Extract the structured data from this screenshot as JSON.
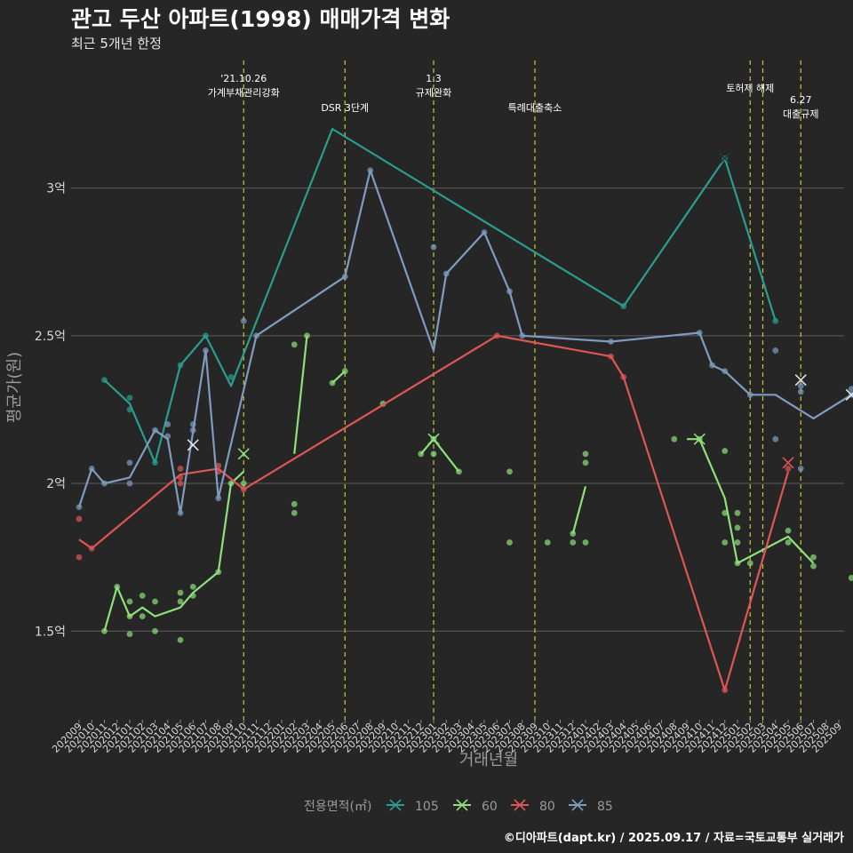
{
  "title": "관고 두산 아파트(1998) 매매가격 변화",
  "subtitle": "최근 5개년 한정",
  "caption": "©디아파트(dapt.kr) / 2025.09.17 / 자료=국토교통부 실거래가",
  "chart_data": {
    "type": "line",
    "xlabel": "거래년월",
    "ylabel": "평균가(원)",
    "ylim": [
      1.2,
      3.45
    ],
    "yticks": [
      {
        "v": 1.5,
        "label": "1.5억"
      },
      {
        "v": 2.0,
        "label": "2억"
      },
      {
        "v": 2.5,
        "label": "2.5억"
      },
      {
        "v": 3.0,
        "label": "3억"
      }
    ],
    "categories": [
      "202009",
      "202010",
      "202011",
      "202012",
      "202101",
      "202102",
      "202103",
      "202104",
      "202105",
      "202106",
      "202107",
      "202108",
      "202109",
      "202110",
      "202111",
      "202112",
      "202201",
      "202202",
      "202203",
      "202204",
      "202205",
      "202206",
      "202207",
      "202208",
      "202209",
      "202210",
      "202211",
      "202212",
      "202301",
      "202302",
      "202303",
      "202304",
      "202305",
      "202306",
      "202307",
      "202308",
      "202309",
      "202310",
      "202311",
      "202312",
      "202401",
      "202402",
      "202403",
      "202404",
      "202405",
      "202406",
      "202407",
      "202408",
      "202409",
      "202410",
      "202411",
      "202412",
      "202501",
      "202502",
      "202503",
      "202504",
      "202505",
      "202506",
      "202507",
      "202508",
      "202509"
    ],
    "legend_title": "전용면적(㎡)",
    "series": [
      {
        "name": "105",
        "color": "#2a9d8f",
        "line": [
          [
            3,
            2.35
          ],
          [
            5,
            2.27
          ],
          [
            7,
            2.07
          ],
          [
            9,
            2.4
          ],
          [
            11,
            2.5
          ],
          [
            13,
            2.33
          ],
          [
            21,
            3.2
          ],
          [
            44,
            2.6
          ],
          [
            52,
            3.1
          ],
          [
            56,
            2.55
          ]
        ],
        "points": [
          [
            3,
            2.35
          ],
          [
            5,
            2.29
          ],
          [
            5,
            2.25
          ],
          [
            7,
            2.07
          ],
          [
            9,
            2.4
          ],
          [
            11,
            2.5
          ],
          [
            13,
            2.36
          ],
          [
            44,
            2.6
          ],
          [
            52,
            3.1
          ],
          [
            56,
            2.55
          ]
        ],
        "crosses": [
          [
            52,
            3.1
          ]
        ]
      },
      {
        "name": "60",
        "color": "#8ee07a",
        "line": [
          [
            3,
            1.5
          ],
          [
            4,
            1.65
          ],
          [
            5,
            1.55
          ],
          [
            6,
            1.58
          ],
          [
            7,
            1.55
          ],
          [
            9,
            1.58
          ],
          [
            10,
            1.63
          ],
          [
            12,
            1.7
          ],
          [
            13,
            2.0
          ],
          [
            14,
            2.04
          ]
        ],
        "segments": [
          [
            [
              18,
              2.1
            ],
            [
              19,
              2.5
            ]
          ],
          [
            [
              21,
              2.34
            ],
            [
              22,
              2.38
            ]
          ],
          [
            [
              28,
              2.1
            ],
            [
              29,
              2.15
            ],
            [
              31,
              2.04
            ]
          ],
          [
            [
              40,
              1.83
            ],
            [
              41,
              1.99
            ]
          ],
          [
            [
              49,
              2.15
            ],
            [
              50,
              2.15
            ],
            [
              52,
              1.95
            ],
            [
              53,
              1.73
            ],
            [
              57,
              1.82
            ],
            [
              59,
              1.73
            ]
          ]
        ],
        "points": [
          [
            3,
            1.5
          ],
          [
            4,
            1.65
          ],
          [
            5,
            1.6
          ],
          [
            5,
            1.55
          ],
          [
            5,
            1.49
          ],
          [
            6,
            1.62
          ],
          [
            6,
            1.55
          ],
          [
            7,
            1.6
          ],
          [
            7,
            1.5
          ],
          [
            9,
            1.63
          ],
          [
            9,
            1.6
          ],
          [
            9,
            1.47
          ],
          [
            10,
            1.65
          ],
          [
            10,
            1.62
          ],
          [
            12,
            1.7
          ],
          [
            13,
            2.0
          ],
          [
            14,
            2.0
          ],
          [
            18,
            2.47
          ],
          [
            18,
            1.93
          ],
          [
            18,
            1.9
          ],
          [
            19,
            2.5
          ],
          [
            21,
            2.34
          ],
          [
            22,
            2.38
          ],
          [
            25,
            2.27
          ],
          [
            28,
            2.1
          ],
          [
            29,
            2.15
          ],
          [
            29,
            2.1
          ],
          [
            31,
            2.04
          ],
          [
            35,
            2.04
          ],
          [
            35,
            1.8
          ],
          [
            38,
            1.8
          ],
          [
            40,
            1.83
          ],
          [
            40,
            1.8
          ],
          [
            41,
            2.1
          ],
          [
            41,
            2.07
          ],
          [
            41,
            1.8
          ],
          [
            48,
            2.15
          ],
          [
            50,
            2.15
          ],
          [
            52,
            2.11
          ],
          [
            52,
            1.9
          ],
          [
            52,
            1.8
          ],
          [
            53,
            1.9
          ],
          [
            53,
            1.85
          ],
          [
            53,
            1.8
          ],
          [
            53,
            1.73
          ],
          [
            54,
            1.73
          ],
          [
            57,
            1.84
          ],
          [
            57,
            1.8
          ],
          [
            59,
            1.75
          ],
          [
            59,
            1.72
          ],
          [
            62,
            1.68
          ]
        ],
        "crosses": [
          [
            14,
            2.1
          ],
          [
            29,
            2.15
          ],
          [
            50,
            2.15
          ]
        ]
      },
      {
        "name": "80",
        "color": "#e05555",
        "line": [
          [
            1,
            1.81
          ],
          [
            2,
            1.78
          ],
          [
            9,
            2.03
          ],
          [
            12,
            2.05
          ],
          [
            14,
            1.98
          ],
          [
            34,
            2.5
          ],
          [
            43,
            2.43
          ],
          [
            44,
            2.36
          ],
          [
            52,
            1.3
          ],
          [
            57,
            2.04
          ]
        ],
        "points": [
          [
            1,
            1.88
          ],
          [
            1,
            1.75
          ],
          [
            2,
            1.78
          ],
          [
            9,
            2.05
          ],
          [
            9,
            2.02
          ],
          [
            9,
            2.0
          ],
          [
            12,
            2.06
          ],
          [
            12,
            2.04
          ],
          [
            14,
            1.98
          ],
          [
            34,
            2.5
          ],
          [
            43,
            2.43
          ],
          [
            44,
            2.36
          ],
          [
            52,
            1.3
          ],
          [
            57,
            2.05
          ]
        ],
        "crosses": [
          [
            57,
            2.07
          ]
        ]
      },
      {
        "name": "85",
        "color": "#7f9cc0",
        "line": [
          [
            1,
            1.92
          ],
          [
            2,
            2.05
          ],
          [
            3,
            2.0
          ],
          [
            5,
            2.02
          ],
          [
            7,
            2.18
          ],
          [
            8,
            2.15
          ],
          [
            9,
            1.9
          ],
          [
            11,
            2.45
          ],
          [
            12,
            1.95
          ],
          [
            15,
            2.5
          ],
          [
            22,
            2.7
          ],
          [
            24,
            3.06
          ],
          [
            29,
            2.45
          ],
          [
            30,
            2.71
          ],
          [
            33,
            2.85
          ],
          [
            35,
            2.65
          ],
          [
            36,
            2.5
          ],
          [
            43,
            2.48
          ],
          [
            50,
            2.51
          ],
          [
            51,
            2.4
          ],
          [
            52,
            2.38
          ],
          [
            54,
            2.3
          ],
          [
            56,
            2.3
          ],
          [
            59,
            2.22
          ],
          [
            62,
            2.3
          ]
        ],
        "points": [
          [
            1,
            1.92
          ],
          [
            2,
            2.05
          ],
          [
            3,
            2.0
          ],
          [
            5,
            2.07
          ],
          [
            5,
            2.0
          ],
          [
            7,
            2.18
          ],
          [
            8,
            2.2
          ],
          [
            8,
            2.16
          ],
          [
            9,
            1.9
          ],
          [
            10,
            2.2
          ],
          [
            10,
            2.18
          ],
          [
            11,
            2.45
          ],
          [
            12,
            1.95
          ],
          [
            14,
            2.55
          ],
          [
            15,
            2.5
          ],
          [
            22,
            2.7
          ],
          [
            24,
            3.06
          ],
          [
            29,
            2.8
          ],
          [
            30,
            2.71
          ],
          [
            33,
            2.85
          ],
          [
            35,
            2.65
          ],
          [
            36,
            2.5
          ],
          [
            43,
            2.48
          ],
          [
            50,
            2.51
          ],
          [
            51,
            2.4
          ],
          [
            52,
            2.38
          ],
          [
            54,
            2.3
          ],
          [
            56,
            2.45
          ],
          [
            56,
            2.15
          ],
          [
            58,
            2.33
          ],
          [
            58,
            2.31
          ],
          [
            58,
            2.05
          ],
          [
            62,
            2.32
          ],
          [
            62,
            2.3
          ]
        ],
        "crosses": [
          [
            10,
            2.13
          ],
          [
            58,
            2.35
          ],
          [
            62,
            2.3
          ]
        ]
      }
    ],
    "events": [
      {
        "x": 14,
        "lines": [
          "'21.10.26",
          "가계부채관리강화"
        ]
      },
      {
        "x": 22,
        "lines": [
          "DSR 3단계"
        ]
      },
      {
        "x": 29,
        "lines": [
          "1.3",
          "규제완화"
        ]
      },
      {
        "x": 37,
        "lines": [
          "특례대출축소"
        ]
      },
      {
        "x": 54,
        "lines": [
          "토허제 해제"
        ]
      },
      {
        "x": 55,
        "lines": []
      },
      {
        "x": 58,
        "lines": [
          "6.27",
          "대출규제"
        ]
      }
    ]
  }
}
